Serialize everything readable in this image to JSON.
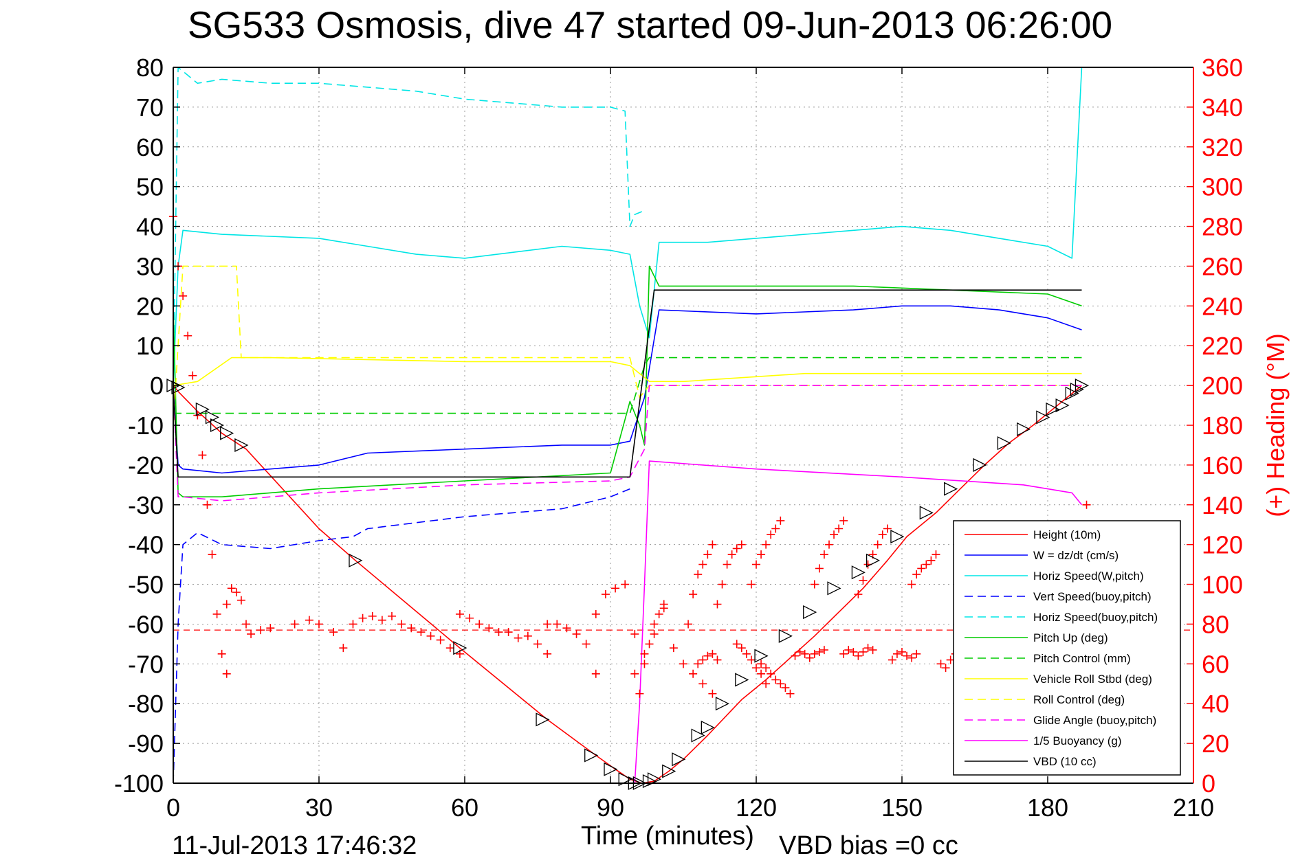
{
  "chart_data": {
    "type": "line",
    "title": "SG533 Osmosis, dive 47 started 09-Jun-2013 06:26:00",
    "xlabel": "Time (minutes)",
    "ylabel": "",
    "ylabel_right": "(+) Heading (°M)",
    "footer_left": "11-Jul-2013 17:46:32",
    "footer_right": "VBD bias =0 cc",
    "xlim": [
      0,
      210
    ],
    "ylim": [
      -100,
      80
    ],
    "ylim_right": [
      0,
      360
    ],
    "x_ticks": [
      "0",
      "30",
      "60",
      "90",
      "120",
      "150",
      "180",
      "210"
    ],
    "y_ticks": [
      "80",
      "70",
      "60",
      "50",
      "40",
      "30",
      "20",
      "10",
      "0",
      "-10",
      "-20",
      "-30",
      "-40",
      "-50",
      "-60",
      "-70",
      "-80",
      "-90",
      "-100"
    ],
    "y_ticks_right": [
      "360",
      "340",
      "320",
      "300",
      "280",
      "260",
      "240",
      "220",
      "200",
      "180",
      "160",
      "140",
      "120",
      "100",
      "80",
      "60",
      "40",
      "20",
      "0"
    ],
    "grid": true,
    "legend_position": "lower-right",
    "series": [
      {
        "name": "Height (10m)",
        "color": "#ff0000",
        "dash": "solid",
        "x": [
          0,
          1,
          5,
          10,
          15,
          30,
          37.5,
          59,
          77,
          87,
          91,
          94,
          96.5,
          99,
          102,
          105,
          110,
          117,
          122,
          132,
          137,
          142,
          147,
          151,
          157,
          162,
          167,
          172,
          177,
          182,
          187
        ],
        "y": [
          0,
          -1.5,
          -6.5,
          -12,
          -16,
          -36,
          -44,
          -66,
          -84,
          -93,
          -96.5,
          -99,
          -100,
          -99.5,
          -97,
          -94,
          -88,
          -79,
          -74,
          -63,
          -57,
          -51,
          -44,
          -38,
          -32,
          -26,
          -20,
          -14.5,
          -10,
          -5,
          0
        ]
      },
      {
        "name": "W = dz/dt (cm/s)",
        "color": "#0000ff",
        "dash": "solid",
        "x": [
          0,
          1,
          2,
          10,
          30,
          40,
          60,
          80,
          90,
          94,
          97,
          100,
          120,
          140,
          150,
          160,
          170,
          180,
          187
        ],
        "y": [
          0,
          -20,
          -21,
          -22,
          -20,
          -17,
          -16,
          -15,
          -15,
          -14,
          -3,
          19,
          18,
          19,
          20,
          20,
          19,
          17,
          14
        ]
      },
      {
        "name": "Horiz Speed(W,pitch)",
        "color": "#00e5e5",
        "dash": "solid",
        "x": [
          0,
          1,
          2,
          10,
          30,
          50,
          60,
          80,
          90,
          94,
          96,
          98,
          100,
          110,
          140,
          150,
          160,
          170,
          180,
          185,
          187
        ],
        "y": [
          0,
          30,
          39,
          38,
          37,
          33,
          32,
          35,
          34,
          33,
          20,
          12,
          36,
          36,
          39,
          40,
          39,
          37,
          35,
          32,
          80
        ]
      },
      {
        "name": "Vert Speed(buoy,pitch)",
        "color": "#0000ff",
        "dash": "dashed",
        "x": [
          0,
          1,
          2,
          5,
          10,
          20,
          30,
          37,
          40,
          60,
          80,
          90,
          94
        ],
        "y": [
          -100,
          -60,
          -40,
          -37,
          -40,
          -41,
          -39,
          -38,
          -36,
          -33,
          -31,
          -28,
          -26
        ]
      },
      {
        "name": "Horiz Speed(buoy,pitch)",
        "color": "#00e5e5",
        "dash": "dashed",
        "x": [
          0,
          1,
          2,
          5,
          10,
          20,
          30,
          40,
          50,
          60,
          70,
          80,
          90,
          93,
          94,
          95,
          97
        ],
        "y": [
          0,
          80,
          79,
          76,
          77,
          76,
          76,
          75,
          74,
          72,
          71,
          70,
          70,
          69,
          40,
          43,
          44
        ]
      },
      {
        "name": "Pitch Up (deg)",
        "color": "#00cc00",
        "dash": "solid",
        "x": [
          0,
          1,
          2,
          10,
          30,
          60,
          90,
          94,
          96,
          97,
          98,
          100,
          120,
          140,
          160,
          180,
          187
        ],
        "y": [
          20,
          -27,
          -28,
          -28,
          -26,
          -24,
          -22,
          -4,
          -10,
          -15,
          30,
          25,
          25,
          25,
          24,
          23,
          20
        ]
      },
      {
        "name": "Pitch Control (mm)",
        "color": "#00cc00",
        "dash": "dashed",
        "x": [
          0,
          1,
          94,
          95,
          97,
          98,
          187
        ],
        "y": [
          -7,
          -7,
          -7,
          -3,
          5,
          7,
          7
        ]
      },
      {
        "name": "Vehicle Roll Stbd (deg)",
        "color": "#ffff00",
        "dash": "solid",
        "x": [
          0,
          5,
          12,
          20,
          60,
          90,
          94,
          98,
          105,
          130,
          160,
          187
        ],
        "y": [
          0,
          1,
          7,
          7,
          6,
          6,
          5,
          1,
          1,
          3,
          3,
          3
        ]
      },
      {
        "name": "Roll Control (deg)",
        "color": "#ffff00",
        "dash": "dashed",
        "x": [
          0,
          2,
          8,
          13,
          14,
          94,
          96,
          98,
          187
        ],
        "y": [
          -10,
          30,
          30,
          30,
          7,
          7,
          -3,
          0,
          0
        ]
      },
      {
        "name": "Glide Angle (buoy,pitch)",
        "color": "#ff00ff",
        "dash": "dashed",
        "x": [
          0,
          1,
          2,
          10,
          30,
          60,
          90,
          94,
          97,
          98,
          187
        ],
        "y": [
          0,
          -28,
          -28,
          -29,
          -27,
          -25,
          -24,
          -23,
          -16,
          0,
          0
        ]
      },
      {
        "name": "1/5 Buoyancy (g)",
        "color": "#ff00ff",
        "dash": "solid",
        "x": [
          95,
          96,
          97,
          98,
          120,
          150,
          175,
          180,
          185,
          187
        ],
        "y": [
          -100,
          -80,
          -50,
          -19,
          -21,
          -23,
          -25,
          -26,
          -27,
          -30
        ]
      },
      {
        "name": "VBD (10 cc)",
        "color": "#000000",
        "dash": "solid",
        "x": [
          0,
          1,
          94,
          99,
          187
        ],
        "y": [
          0,
          -23,
          -23,
          24,
          24
        ]
      }
    ],
    "heading_points": {
      "name": "(+) Heading",
      "axis": "right",
      "color": "#ff0000",
      "marker": "+",
      "segments": [
        {
          "x": [
            0,
            1,
            2,
            3,
            4,
            5,
            6,
            7,
            8,
            9,
            10,
            11
          ],
          "y": [
            285,
            260,
            245,
            225,
            205,
            185,
            165,
            140,
            115,
            85,
            65,
            55
          ]
        },
        {
          "x": [
            11,
            12,
            13,
            14,
            15,
            16,
            18,
            20,
            25,
            28,
            30,
            33
          ],
          "y": [
            90,
            98,
            96,
            92,
            80,
            75,
            77,
            78,
            80,
            82,
            80,
            76
          ]
        },
        {
          "x": [
            35,
            37,
            39,
            41,
            43,
            45,
            47,
            49,
            51,
            53,
            55,
            57,
            59
          ],
          "y": [
            68,
            80,
            83,
            84,
            82,
            84,
            80,
            78,
            76,
            74,
            72,
            68,
            65
          ]
        },
        {
          "x": [
            59,
            61,
            63,
            65,
            67,
            69,
            71,
            73,
            75,
            77
          ],
          "y": [
            85,
            83,
            80,
            78,
            76,
            76,
            73,
            74,
            70,
            65
          ]
        },
        {
          "x": [
            77,
            79,
            81,
            83,
            85,
            87
          ],
          "y": [
            80,
            80,
            78,
            75,
            70,
            55
          ]
        },
        {
          "x": [
            87,
            89,
            91,
            93,
            95,
            97,
            99,
            101
          ],
          "y": [
            85,
            95,
            98,
            100,
            75,
            65,
            75,
            88
          ]
        },
        {
          "x": [
            95,
            96,
            97,
            98,
            99,
            100,
            101
          ],
          "y": [
            55,
            45,
            60,
            70,
            80,
            85,
            90
          ]
        },
        {
          "x": [
            103,
            105,
            107,
            109,
            111
          ],
          "y": [
            68,
            60,
            55,
            50,
            45
          ]
        },
        {
          "x": [
            106,
            107,
            108,
            109,
            110,
            111
          ],
          "y": [
            80,
            95,
            105,
            110,
            115,
            120
          ]
        },
        {
          "x": [
            108,
            109,
            110,
            111,
            112
          ],
          "y": [
            60,
            62,
            64,
            65,
            62
          ]
        },
        {
          "x": [
            112,
            113,
            114,
            115,
            116,
            117
          ],
          "y": [
            90,
            100,
            110,
            115,
            118,
            120
          ]
        },
        {
          "x": [
            116,
            117,
            118,
            119,
            120,
            121,
            122
          ],
          "y": [
            70,
            68,
            65,
            62,
            58,
            55,
            50
          ]
        },
        {
          "x": [
            119,
            120,
            121,
            122,
            123,
            124,
            125
          ],
          "y": [
            100,
            110,
            115,
            120,
            125,
            128,
            132
          ]
        },
        {
          "x": [
            121,
            122,
            123,
            124,
            125,
            126,
            127
          ],
          "y": [
            60,
            58,
            55,
            52,
            50,
            48,
            45
          ]
        },
        {
          "x": [
            128,
            129,
            130,
            131,
            132,
            133,
            134
          ],
          "y": [
            64,
            66,
            65,
            63,
            65,
            66,
            67
          ]
        },
        {
          "x": [
            132,
            133,
            134,
            135,
            136,
            137,
            138
          ],
          "y": [
            100,
            108,
            115,
            120,
            125,
            128,
            132
          ]
        },
        {
          "x": [
            138,
            139,
            140,
            141,
            142,
            143,
            144
          ],
          "y": [
            65,
            67,
            66,
            64,
            66,
            68,
            67
          ]
        },
        {
          "x": [
            141,
            142,
            143,
            144,
            145,
            146,
            147
          ],
          "y": [
            95,
            102,
            110,
            115,
            120,
            125,
            128
          ]
        },
        {
          "x": [
            148,
            149,
            150,
            151,
            152,
            153
          ],
          "y": [
            62,
            65,
            66,
            64,
            63,
            65
          ]
        },
        {
          "x": [
            152,
            153,
            154,
            155,
            156,
            157
          ],
          "y": [
            100,
            105,
            108,
            110,
            112,
            115
          ]
        },
        {
          "x": [
            158,
            159,
            160,
            161,
            162
          ],
          "y": [
            60,
            58,
            62,
            65,
            63
          ]
        },
        {
          "x": [
            162,
            163,
            164,
            165,
            166,
            167,
            168
          ],
          "y": [
            95,
            100,
            105,
            108,
            112,
            115,
            118
          ]
        },
        {
          "x": [
            168,
            169,
            170,
            171,
            172
          ],
          "y": [
            62,
            60,
            65,
            67,
            66
          ]
        },
        {
          "x": [
            173,
            174,
            175,
            176,
            177
          ],
          "y": [
            100,
            105,
            108,
            112,
            115
          ]
        },
        {
          "x": [
            178,
            179,
            180,
            181,
            182,
            183
          ],
          "y": [
            64,
            66,
            68,
            65,
            62,
            60
          ]
        },
        {
          "x": [
            184,
            185,
            186,
            187,
            188
          ],
          "y": [
            100,
            108,
            112,
            115,
            140
          ]
        }
      ]
    },
    "heading_mean": {
      "name": "mean heading",
      "axis": "right",
      "color": "#ff0000",
      "dash": "dashed",
      "value": 77
    },
    "height_markers": {
      "marker": "triangle",
      "color": "#000000",
      "x": [
        0,
        1,
        6,
        8,
        9,
        11,
        14,
        37.5,
        59,
        76,
        86,
        90,
        93,
        95,
        96,
        98,
        99,
        102,
        104,
        108,
        110,
        113,
        117,
        121,
        126,
        131,
        136,
        141,
        144,
        149,
        155,
        160,
        166,
        171,
        175,
        179,
        181,
        183,
        185,
        186,
        187
      ],
      "y": [
        0,
        -0.5,
        -6,
        -8,
        -10,
        -12,
        -15,
        -44,
        -66,
        -84,
        -93,
        -96.5,
        -99,
        -100,
        -100,
        -99.5,
        -99,
        -97,
        -94,
        -88,
        -86,
        -80,
        -74,
        -68,
        -63,
        -57,
        -51,
        -47,
        -44,
        -38,
        -32,
        -26,
        -20,
        -14.5,
        -11,
        -8,
        -6,
        -5,
        -2,
        -1,
        0
      ]
    }
  }
}
